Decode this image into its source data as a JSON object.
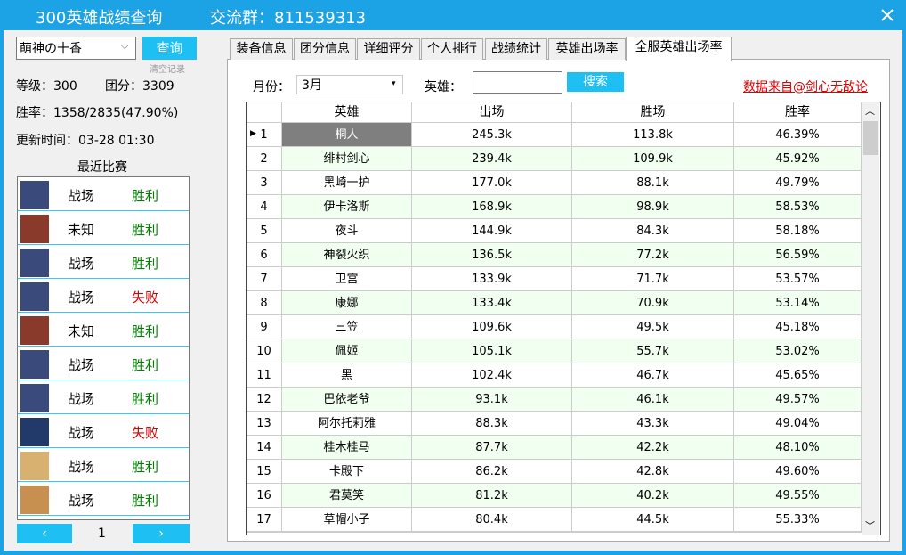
{
  "header": {
    "title": "300英雄战绩查询",
    "group": "交流群：811539313"
  },
  "left": {
    "player": "萌神の十香",
    "query_button": "查询",
    "clear": "清空记录",
    "level": "等级：300",
    "score": "团分：3309",
    "winrate": "胜率：1358/2835(47.90%)",
    "update": "更新时间：03-28 01:30",
    "recent_title": "最近比赛",
    "matches": [
      {
        "mode": "战场",
        "result": "胜利",
        "color": "#008000"
      },
      {
        "mode": "未知",
        "result": "胜利",
        "color": "#008000"
      },
      {
        "mode": "战场",
        "result": "胜利",
        "color": "#008000"
      },
      {
        "mode": "战场",
        "result": "失败",
        "color": "#e00000"
      },
      {
        "mode": "未知",
        "result": "胜利",
        "color": "#008000"
      },
      {
        "mode": "战场",
        "result": "胜利",
        "color": "#008000"
      },
      {
        "mode": "战场",
        "result": "胜利",
        "color": "#008000"
      },
      {
        "mode": "战场",
        "result": "失败",
        "color": "#e00000"
      },
      {
        "mode": "战场",
        "result": "胜利",
        "color": "#008000"
      },
      {
        "mode": "战场",
        "result": "胜利",
        "color": "#008000"
      }
    ],
    "page": "1"
  },
  "tabs": [
    "装备信息",
    "团分信息",
    "详细评分",
    "个人排行",
    "战绩统计",
    "英雄出场率",
    "全服英雄出场率"
  ],
  "filter": {
    "month_label": "月份：",
    "month": "3月",
    "hero_label": "英雄：",
    "search": "搜索",
    "source": "数据来自@剑心无敌论"
  },
  "table": {
    "columns": [
      "英雄",
      "出场",
      "胜场",
      "胜率"
    ],
    "rows": [
      [
        1,
        "桐人",
        "245.3k",
        "113.8k",
        "46.39%"
      ],
      [
        2,
        "绯村剑心",
        "239.4k",
        "109.9k",
        "45.92%"
      ],
      [
        3,
        "黑崎一护",
        "177.0k",
        "88.1k",
        "49.79%"
      ],
      [
        4,
        "伊卡洛斯",
        "168.9k",
        "98.9k",
        "58.53%"
      ],
      [
        5,
        "夜斗",
        "144.9k",
        "84.3k",
        "58.18%"
      ],
      [
        6,
        "神裂火织",
        "136.5k",
        "77.2k",
        "56.59%"
      ],
      [
        7,
        "卫宫",
        "133.9k",
        "71.7k",
        "53.57%"
      ],
      [
        8,
        "康娜",
        "133.4k",
        "70.9k",
        "53.14%"
      ],
      [
        9,
        "三笠",
        "109.6k",
        "49.5k",
        "45.18%"
      ],
      [
        10,
        "佩姬",
        "105.1k",
        "55.7k",
        "53.02%"
      ],
      [
        11,
        "黑",
        "102.4k",
        "46.7k",
        "45.65%"
      ],
      [
        12,
        "巴依老爷",
        "93.1k",
        "46.1k",
        "49.57%"
      ],
      [
        13,
        "阿尔托莉雅",
        "88.3k",
        "43.3k",
        "49.04%"
      ],
      [
        14,
        "桂木桂马",
        "87.7k",
        "42.2k",
        "48.10%"
      ],
      [
        15,
        "卡殿下",
        "86.2k",
        "42.8k",
        "49.60%"
      ],
      [
        16,
        "君莫笑",
        "81.2k",
        "40.2k",
        "49.55%"
      ],
      [
        17,
        "草帽小子",
        "80.4k",
        "44.5k",
        "55.33%"
      ]
    ]
  }
}
